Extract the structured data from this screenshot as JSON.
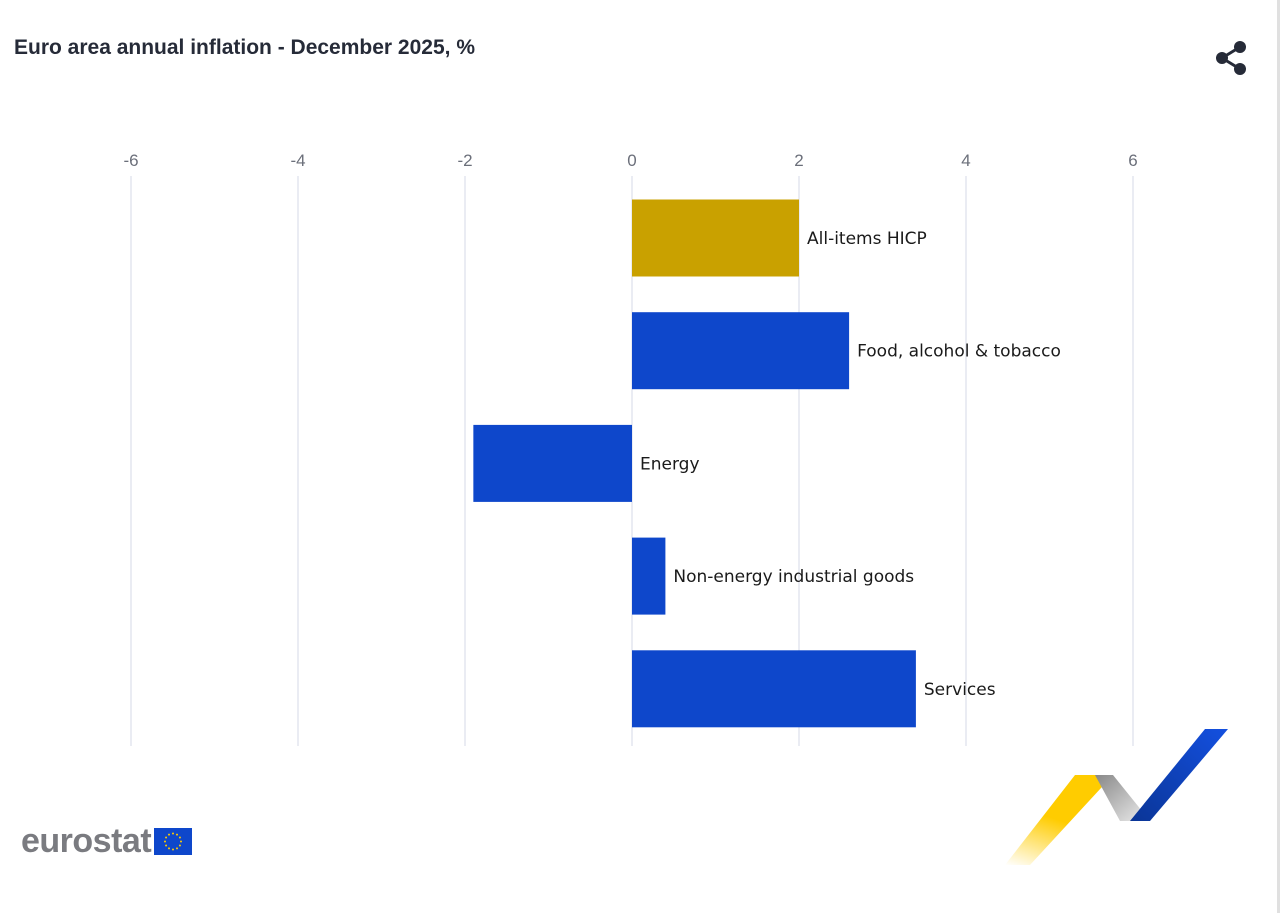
{
  "title": "Euro area annual inflation - December 2025, %",
  "share_icon": "share-icon",
  "logo": {
    "text": "eurostat"
  },
  "chart_data": {
    "type": "bar",
    "orientation": "horizontal",
    "title": "Euro area annual inflation - December 2025, %",
    "categories": [
      "All-items HICP",
      "Food, alcohol & tobacco",
      "Energy",
      "Non-energy industrial goods",
      "Services"
    ],
    "values": [
      2.0,
      2.6,
      -1.9,
      0.4,
      3.4
    ],
    "colors": [
      "#c9a100",
      "#0e47cb",
      "#0e47cb",
      "#0e47cb",
      "#0e47cb"
    ],
    "xlim": [
      -6,
      7.2
    ],
    "xticks": [
      -6,
      -4,
      -2,
      0,
      2,
      4,
      6
    ],
    "xtick_labels": [
      "-6",
      "-4",
      "-2",
      "0",
      "2",
      "4",
      "6"
    ],
    "axis_position": "top",
    "grid": true,
    "legend": "none"
  }
}
